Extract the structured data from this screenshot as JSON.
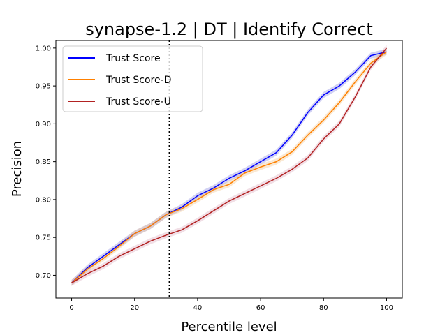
{
  "chart_data": {
    "type": "line",
    "title": "synapse-1.2 | DT | Identify Correct",
    "xlabel": "Percentile level",
    "ylabel": "Precision",
    "xlim": [
      -5,
      105
    ],
    "ylim": [
      0.67,
      1.01
    ],
    "xticks": [
      0,
      20,
      40,
      60,
      80,
      100
    ],
    "yticks": [
      0.7,
      0.75,
      0.8,
      0.85,
      0.9,
      0.95,
      1.0
    ],
    "xtick_labels": [
      "0",
      "20",
      "40",
      "60",
      "80",
      "100"
    ],
    "ytick_labels": [
      "0.70",
      "0.75",
      "0.80",
      "0.85",
      "0.90",
      "0.95",
      "1.00"
    ],
    "grid": false,
    "legend_position": "upper-left",
    "vline": {
      "x": 31,
      "style": "dotted",
      "color": "#000000"
    },
    "x": [
      0,
      5,
      10,
      15,
      20,
      25,
      30,
      35,
      40,
      45,
      50,
      55,
      60,
      65,
      70,
      75,
      80,
      85,
      90,
      95,
      100
    ],
    "series": [
      {
        "name": "Trust Score",
        "color": "#0000ff",
        "band_color": "#7b7bdc",
        "values": [
          0.69,
          0.71,
          0.725,
          0.74,
          0.755,
          0.765,
          0.78,
          0.79,
          0.805,
          0.815,
          0.828,
          0.838,
          0.85,
          0.862,
          0.885,
          0.915,
          0.938,
          0.95,
          0.968,
          0.99,
          0.995
        ]
      },
      {
        "name": "Trust Score-D",
        "color": "#ff8000",
        "band_color": "#f2c080",
        "values": [
          0.69,
          0.708,
          0.722,
          0.738,
          0.755,
          0.765,
          0.78,
          0.788,
          0.8,
          0.813,
          0.82,
          0.835,
          0.843,
          0.85,
          0.863,
          0.885,
          0.905,
          0.928,
          0.955,
          0.98,
          0.995
        ]
      },
      {
        "name": "Trust Score-U",
        "color": "#b22222",
        "band_color": "#d6a3b8",
        "values": [
          0.69,
          0.702,
          0.712,
          0.725,
          0.735,
          0.745,
          0.753,
          0.76,
          0.772,
          0.785,
          0.798,
          0.808,
          0.818,
          0.828,
          0.84,
          0.855,
          0.88,
          0.9,
          0.935,
          0.975,
          1.0
        ]
      }
    ]
  }
}
